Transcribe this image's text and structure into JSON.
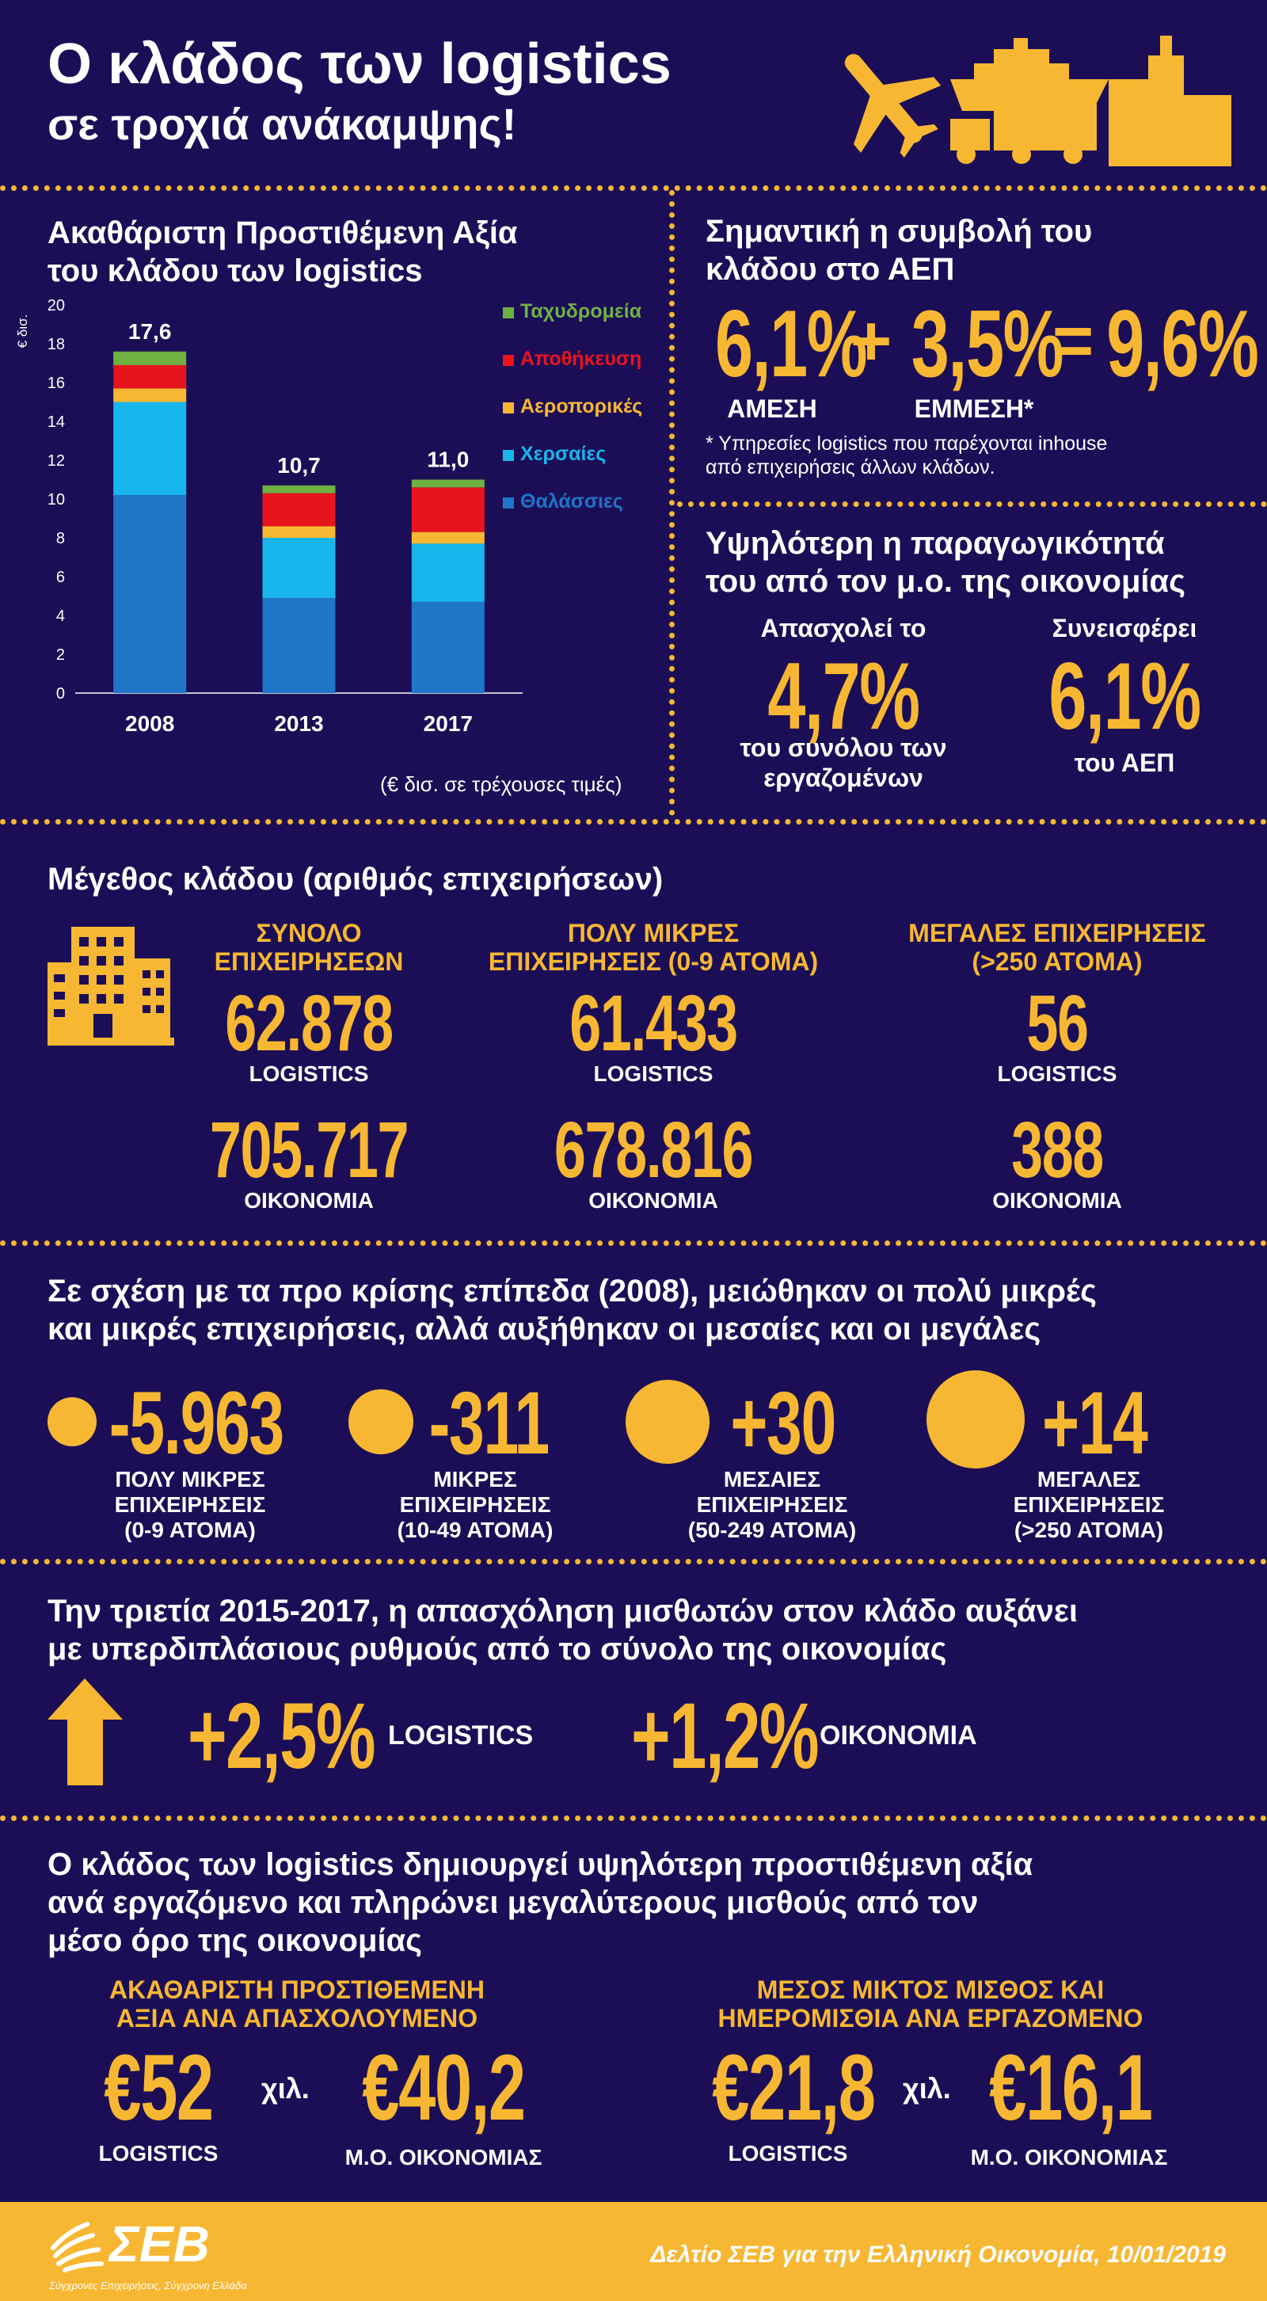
{
  "header": {
    "title_line1": "Ο κλάδος των logistics",
    "title_line2": "σε τροχιά ανάκαμψης!"
  },
  "gva": {
    "title_line1": "Ακαθάριστη Προστιθέμενη Αξία",
    "title_line2": "του κλάδου των logistics",
    "unit_note": "(€ δισ. σε τρέχουσες τιμές)"
  },
  "chart_data": {
    "type": "bar",
    "stacked": true,
    "ylabel": "€ δισ.",
    "ylim": [
      0,
      20
    ],
    "yticks": [
      0,
      2,
      4,
      6,
      8,
      10,
      12,
      14,
      16,
      18,
      20
    ],
    "categories": [
      "2008",
      "2013",
      "2017"
    ],
    "totals_labels": [
      "17,6",
      "10,7",
      "11,0"
    ],
    "series": [
      {
        "name": "Θαλάσσιες",
        "color": "#1f75c8",
        "values": [
          10.2,
          4.9,
          4.7
        ]
      },
      {
        "name": "Χερσαίες",
        "color": "#18b6ec",
        "values": [
          4.8,
          3.1,
          3.0
        ]
      },
      {
        "name": "Αεροπορικές",
        "color": "#f8b732",
        "values": [
          0.7,
          0.6,
          0.6
        ]
      },
      {
        "name": "Αποθήκευση",
        "color": "#e8141c",
        "values": [
          1.2,
          1.7,
          2.3
        ]
      },
      {
        "name": "Ταχυδρομεία",
        "color": "#6fb141",
        "values": [
          0.7,
          0.4,
          0.4
        ]
      }
    ],
    "legend_order": [
      "Ταχυδρομεία",
      "Αποθήκευση",
      "Αεροπορικές",
      "Χερσαίες",
      "Θαλάσσιες"
    ],
    "legend": "right"
  },
  "gdp": {
    "title_line1": "Σημαντική η συμβολή του",
    "title_line2": "κλάδου στο ΑΕΠ",
    "direct_value": "6,1%",
    "plus": "+",
    "indirect_value": "3,5%",
    "equals": "=",
    "total_value": "9,6%",
    "direct_label": "ΑΜΕΣΗ",
    "indirect_label": "ΕΜΜΕΣΗ*",
    "footnote_line1": "* Υπηρεσίες logistics που παρέχονται inhouse",
    "footnote_line2": "από επιχειρήσεις άλλων κλάδων."
  },
  "productivity": {
    "title_line1": "Υψηλότερη η παραγωγικότητά",
    "title_line2": "του από τον μ.ο. της οικονομίας",
    "employ_top": "Απασχολεί το",
    "employ_value": "4,7%",
    "employ_bottom_line1": "του συνόλου των",
    "employ_bottom_line2": "εργαζομένων",
    "contrib_top": "Συνεισφέρει",
    "contrib_value": "6,1%",
    "contrib_bottom": "του ΑΕΠ"
  },
  "size": {
    "title": "Μέγεθος κλάδου (αριθμός επιχειρήσεων)",
    "columns": [
      {
        "head_line1": "ΣΥΝΟΛΟ",
        "head_line2": "ΕΠΙΧΕΙΡΗΣΕΩΝ",
        "logistics_value": "62.878",
        "economy_value": "705.717"
      },
      {
        "head_line1": "ΠΟΛΥ ΜΙΚΡΕΣ",
        "head_line2": "ΕΠΙΧΕΙΡΗΣΕΙΣ (0-9 ΑΤΟΜΑ)",
        "logistics_value": "61.433",
        "economy_value": "678.816"
      },
      {
        "head_line1": "ΜΕΓΑΛΕΣ ΕΠΙΧΕΙΡΗΣΕΙΣ",
        "head_line2": "(>250 ΑΤΟΜΑ)",
        "logistics_value": "56",
        "economy_value": "388"
      }
    ],
    "logistics_label": "LOGISTICS",
    "economy_label": "ΟΙΚΟΝΟΜΙΑ"
  },
  "change": {
    "title_line1": "Σε σχέση με τα προ κρίσης επίπεδα (2008), μειώθηκαν οι πολύ μικρές",
    "title_line2": "και μικρές επιχειρήσεις, αλλά αυξήθηκαν οι μεσαίες και οι μεγάλες",
    "items": [
      {
        "value": "-5.963",
        "label_line1": "ΠΟΛΥ ΜΙΚΡΕΣ",
        "label_line2": "ΕΠΙΧΕΙΡΗΣΕΙΣ",
        "label_line3": "(0-9 ΑΤΟΜΑ)"
      },
      {
        "value": "-311",
        "label_line1": "ΜΙΚΡΕΣ",
        "label_line2": "ΕΠΙΧΕΙΡΗΣΕΙΣ",
        "label_line3": "(10-49 ΑΤΟΜΑ)"
      },
      {
        "value": "+30",
        "label_line1": "ΜΕΣΑΙΕΣ",
        "label_line2": "ΕΠΙΧΕΙΡΗΣΕΙΣ",
        "label_line3": "(50-249 ΑΤΟΜΑ)"
      },
      {
        "value": "+14",
        "label_line1": "ΜΕΓΑΛΕΣ",
        "label_line2": "ΕΠΙΧΕΙΡΗΣΕΙΣ",
        "label_line3": "(>250 ΑΤΟΜΑ)"
      }
    ]
  },
  "employment": {
    "title_line1": "Την τριετία 2015-2017, η απασχόληση μισθωτών στον κλάδο αυξάνει",
    "title_line2": "με υπερδιπλάσιους ρυθμούς από το σύνολο της οικονομίας",
    "logistics_value": "+2,5%",
    "logistics_label": "LOGISTICS",
    "economy_value": "+1,2%",
    "economy_label": "ΟΙΚΟΝΟΜΙΑ"
  },
  "wages": {
    "title_line1": "Ο κλάδος των logistics δημιουργεί υψηλότερη προστιθέμενη αξία",
    "title_line2": "ανά εργαζόμενο και πληρώνει μεγαλύτερους μισθούς από τον",
    "title_line3": "μέσο όρο της οικονομίας",
    "left_head_line1": "ΑΚΑΘΑΡΙΣΤΗ ΠΡΟΣΤΙΘΕΜΕΝΗ",
    "left_head_line2": "ΑΞΙΑ ΑΝΑ ΑΠΑΣΧΟΛΟΥΜΕΝΟ",
    "left_logistics_value": "€52",
    "left_economy_value": "€40,2",
    "right_head_line1": "ΜΕΣΟΣ ΜΙΚΤΟΣ ΜΙΣΘΟΣ ΚΑΙ",
    "right_head_line2": "ΗΜΕΡΟΜΙΣΘΙΑ ΑΝΑ ΕΡΓΑΖΟΜΕΝΟ",
    "right_logistics_value": "€21,8",
    "right_economy_value": "€16,1",
    "thousand": "χιλ.",
    "logistics_label": "LOGISTICS",
    "economy_label": "Μ.Ο. ΟΙΚΟΝΟΜΙΑΣ"
  },
  "footer": {
    "logo_text": "ΣΕΒ",
    "logo_tagline": "Σύγχρονες Επιχειρήσεις, Σύγχρονη Ελλάδα",
    "source": "Δελτίο ΣΕΒ για την Ελληνική Οικονομία, 10/01/2019"
  },
  "colors": {
    "background": "#1b0e57",
    "accent": "#f8b732",
    "footer": "#f8b732"
  }
}
